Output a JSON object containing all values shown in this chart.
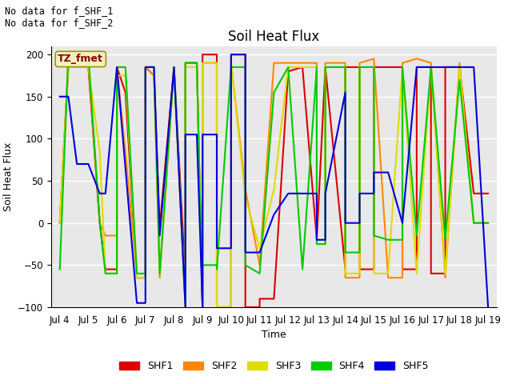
{
  "title": "Soil Heat Flux",
  "xlabel": "Time",
  "ylabel": "Soil Heat Flux",
  "ylim": [
    -100,
    210
  ],
  "yticks": [
    -100,
    -50,
    0,
    50,
    100,
    150,
    200
  ],
  "fig_bg": "#ffffff",
  "plot_bg": "#e8e8e8",
  "text_no_data": [
    "No data for f_SHF_1",
    "No data for f_SHF_2"
  ],
  "legend_label": "TZ_fmet",
  "series": {
    "SHF1": {
      "color": "#dd0000",
      "x": [
        4.0,
        4.3,
        4.6,
        5.0,
        5.0,
        5.4,
        5.6,
        5.6,
        6.0,
        6.0,
        6.3,
        6.3,
        6.7,
        7.0,
        7.0,
        7.3,
        7.5,
        7.5,
        8.0,
        8.0,
        8.4,
        8.4,
        8.8,
        9.0,
        9.0,
        9.5,
        9.5,
        10.0,
        10.0,
        10.5,
        10.5,
        11.0,
        11.0,
        11.5,
        12.0,
        12.5,
        13.0,
        13.0,
        13.3,
        13.3,
        14.0,
        14.0,
        14.5,
        14.5,
        15.0,
        15.0,
        15.5,
        16.0,
        16.0,
        16.5,
        16.5,
        17.0,
        17.0,
        17.5,
        17.5,
        18.0,
        18.5,
        19.0
      ],
      "y": [
        0,
        185,
        185,
        185,
        185,
        0,
        -55,
        -55,
        -55,
        185,
        155,
        155,
        -65,
        -65,
        185,
        175,
        -5,
        -5,
        185,
        185,
        -65,
        190,
        190,
        -100,
        200,
        200,
        -100,
        -100,
        200,
        200,
        -100,
        -100,
        -90,
        -90,
        180,
        185,
        -20,
        -20,
        185,
        185,
        -55,
        185,
        185,
        -55,
        -55,
        185,
        185,
        185,
        -55,
        -55,
        185,
        185,
        -60,
        -60,
        185,
        185,
        35,
        35
      ]
    },
    "SHF2": {
      "color": "#ff8800",
      "x": [
        4.0,
        4.3,
        4.6,
        5.0,
        5.0,
        5.4,
        5.6,
        5.6,
        6.0,
        6.0,
        6.3,
        6.3,
        6.7,
        7.0,
        7.0,
        7.3,
        7.5,
        7.5,
        8.0,
        8.0,
        8.4,
        8.4,
        8.8,
        9.0,
        9.0,
        9.5,
        9.5,
        10.0,
        10.0,
        10.5,
        10.5,
        11.0,
        11.5,
        12.0,
        12.5,
        13.0,
        13.0,
        13.3,
        13.3,
        14.0,
        14.0,
        14.5,
        14.5,
        15.0,
        15.0,
        15.5,
        16.0,
        16.0,
        16.5,
        16.5,
        17.0,
        17.0,
        17.5,
        17.5,
        18.0,
        18.5,
        19.0
      ],
      "y": [
        0,
        190,
        190,
        190,
        190,
        0,
        -15,
        -15,
        -15,
        185,
        85,
        85,
        -65,
        -65,
        185,
        175,
        -65,
        -65,
        185,
        185,
        -100,
        190,
        190,
        -100,
        190,
        190,
        -100,
        -100,
        190,
        40,
        40,
        -50,
        190,
        190,
        190,
        190,
        -25,
        -25,
        190,
        190,
        -65,
        -65,
        190,
        195,
        195,
        -65,
        -65,
        190,
        195,
        195,
        190,
        190,
        -65,
        -65,
        190,
        0,
        0
      ]
    },
    "SHF3": {
      "color": "#dddd00",
      "x": [
        4.0,
        4.3,
        4.6,
        5.0,
        5.0,
        5.4,
        5.6,
        5.6,
        6.0,
        6.0,
        6.3,
        6.3,
        6.7,
        7.0,
        7.0,
        7.3,
        7.5,
        7.5,
        8.0,
        8.0,
        8.4,
        8.4,
        8.8,
        9.0,
        9.0,
        9.5,
        9.5,
        10.0,
        10.0,
        10.5,
        10.5,
        11.0,
        11.5,
        12.0,
        12.5,
        13.0,
        13.0,
        13.3,
        13.3,
        14.0,
        14.0,
        14.5,
        14.5,
        15.0,
        15.0,
        15.5,
        16.0,
        16.0,
        16.5,
        16.5,
        17.0,
        17.0,
        17.5,
        17.5,
        18.0,
        18.5,
        19.0
      ],
      "y": [
        0,
        185,
        185,
        185,
        185,
        85,
        -60,
        -60,
        -60,
        175,
        175,
        175,
        -65,
        -65,
        185,
        185,
        -60,
        -60,
        185,
        185,
        -100,
        185,
        185,
        -100,
        190,
        190,
        -100,
        -100,
        190,
        30,
        30,
        -30,
        40,
        185,
        185,
        185,
        -20,
        -20,
        185,
        185,
        -60,
        -60,
        185,
        185,
        -60,
        -60,
        185,
        185,
        -60,
        -60,
        185,
        185,
        -60,
        -60,
        185,
        0,
        0
      ]
    },
    "SHF4": {
      "color": "#00cc00",
      "x": [
        4.0,
        4.3,
        4.6,
        5.0,
        5.0,
        5.4,
        5.6,
        5.6,
        6.0,
        6.0,
        6.3,
        6.3,
        6.7,
        7.0,
        7.0,
        7.3,
        7.5,
        7.5,
        8.0,
        8.0,
        8.4,
        8.4,
        8.8,
        9.0,
        9.0,
        9.5,
        9.5,
        10.0,
        10.0,
        10.5,
        10.5,
        11.0,
        11.5,
        12.0,
        12.5,
        13.0,
        13.0,
        13.3,
        13.3,
        14.0,
        14.0,
        14.5,
        14.5,
        15.0,
        15.0,
        15.5,
        16.0,
        16.0,
        16.5,
        16.5,
        17.0,
        17.0,
        17.5,
        17.5,
        18.0,
        18.5,
        19.0
      ],
      "y": [
        -55,
        200,
        200,
        200,
        200,
        0,
        -60,
        -60,
        -60,
        185,
        185,
        185,
        -60,
        -60,
        185,
        185,
        -60,
        -60,
        185,
        185,
        -100,
        190,
        190,
        -100,
        -50,
        -50,
        -55,
        185,
        185,
        185,
        -50,
        -60,
        155,
        185,
        -55,
        185,
        -25,
        -25,
        185,
        185,
        -35,
        -35,
        185,
        185,
        -15,
        -20,
        -20,
        185,
        -15,
        -15,
        185,
        185,
        -20,
        -20,
        170,
        0,
        0
      ]
    },
    "SHF5": {
      "color": "#0000dd",
      "x": [
        4.0,
        4.3,
        4.6,
        5.0,
        5.0,
        5.4,
        5.6,
        5.6,
        6.0,
        6.0,
        6.3,
        6.3,
        6.7,
        7.0,
        7.0,
        7.3,
        7.5,
        7.5,
        8.0,
        8.0,
        8.4,
        8.4,
        8.8,
        9.0,
        9.0,
        9.5,
        9.5,
        10.0,
        10.0,
        10.5,
        10.5,
        11.0,
        11.5,
        12.0,
        12.5,
        13.0,
        13.0,
        13.3,
        13.3,
        14.0,
        14.0,
        14.5,
        14.5,
        15.0,
        15.0,
        15.5,
        16.0,
        16.0,
        16.5,
        16.5,
        17.0,
        17.0,
        17.5,
        17.5,
        18.0,
        18.5,
        19.0
      ],
      "y": [
        150,
        150,
        70,
        70,
        70,
        35,
        35,
        35,
        185,
        185,
        65,
        65,
        -95,
        -95,
        185,
        185,
        -15,
        -15,
        185,
        185,
        -100,
        105,
        105,
        -100,
        105,
        105,
        -30,
        -30,
        200,
        200,
        -35,
        -35,
        10,
        35,
        35,
        35,
        -20,
        -20,
        35,
        155,
        0,
        0,
        35,
        35,
        60,
        60,
        0,
        0,
        185,
        185,
        185,
        185,
        185,
        185,
        185,
        185,
        -100
      ]
    }
  },
  "xticks": [
    4,
    5,
    6,
    7,
    8,
    9,
    10,
    11,
    12,
    13,
    14,
    15,
    16,
    17,
    18,
    19
  ],
  "xticklabels": [
    "Jul 4",
    "Jul 5",
    "Jul 6",
    "Jul 7",
    "Jul 8",
    "Jul 9",
    "Jul 10",
    "Jul 11",
    "Jul 12",
    "Jul 13",
    "Jul 14",
    "Jul 15",
    "Jul 16",
    "Jul 17",
    "Jul 18",
    "Jul 19"
  ],
  "legend_entries": [
    "SHF1",
    "SHF2",
    "SHF3",
    "SHF4",
    "SHF5"
  ],
  "legend_colors": [
    "#dd0000",
    "#ff8800",
    "#dddd00",
    "#00cc00",
    "#0000dd"
  ]
}
